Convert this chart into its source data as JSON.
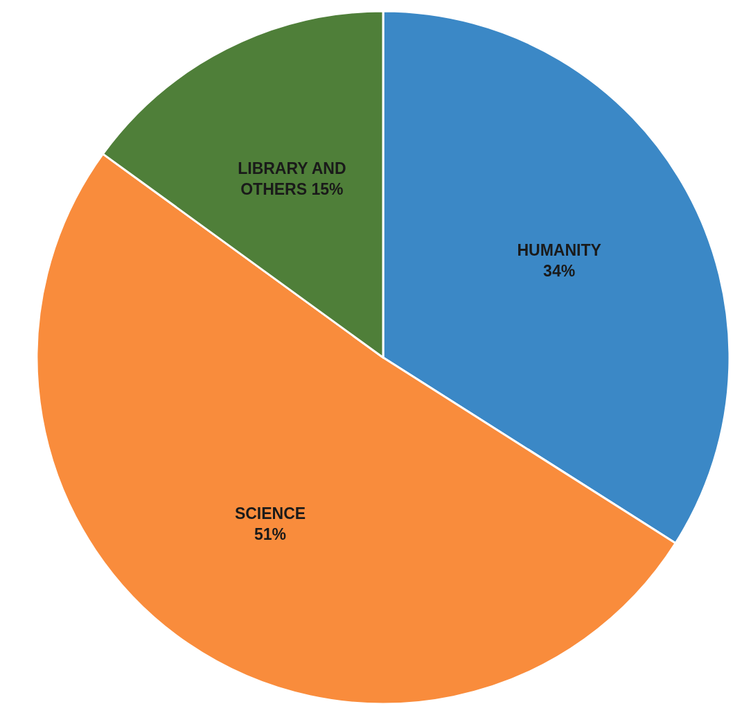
{
  "chart_data": {
    "type": "pie",
    "categories": [
      "HUMANITY",
      "SCIENCE",
      "LIBRARY AND OTHERS"
    ],
    "values": [
      34,
      51,
      15
    ],
    "value_labels": [
      "34%",
      "51%",
      "15%"
    ],
    "colors": [
      "#3b88c6",
      "#f98c3c",
      "#4f7f39"
    ]
  }
}
